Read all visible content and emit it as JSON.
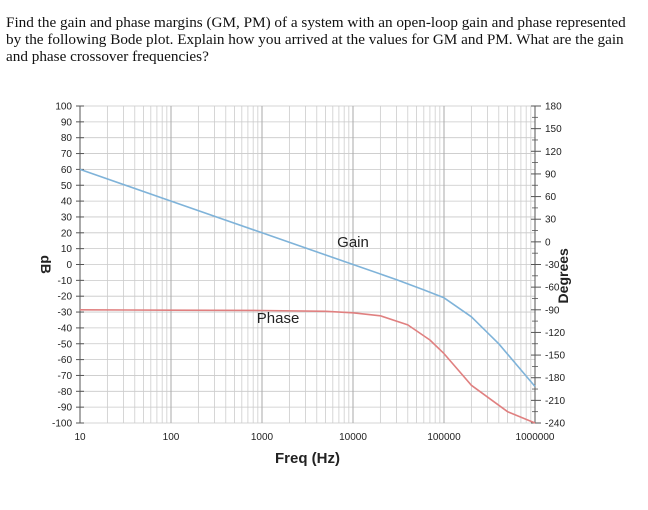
{
  "question": "Find the gain and phase margins (GM, PM) of a system with an open-loop gain and phase represented by the following Bode plot.  Explain how you arrived at the values for GM and PM.  What are the gain and phase crossover frequencies?",
  "chart_data": {
    "type": "line",
    "xlabel": "Freq (Hz)",
    "ylabel_left": "dB",
    "ylabel_right": "Degrees",
    "x_scale": "log",
    "xlim": [
      10,
      1000000
    ],
    "ylim_left": [
      -100,
      100
    ],
    "ylim_right": [
      -240,
      180
    ],
    "grid": true,
    "x_ticks": [
      "10",
      "100",
      "1000",
      "10000",
      "100000",
      "1000000"
    ],
    "left_ticks": [
      "100",
      "90",
      "80",
      "70",
      "60",
      "50",
      "40",
      "30",
      "20",
      "10",
      "0",
      "-10",
      "-20",
      "-30",
      "-40",
      "-50",
      "-60",
      "-70",
      "-80",
      "-90",
      "-100"
    ],
    "right_ticks": [
      "180",
      "150",
      "120",
      "90",
      "60",
      "30",
      "0",
      "-30",
      "-60",
      "-90",
      "-120",
      "-150",
      "-180",
      "-210",
      "-240"
    ],
    "annotations": [
      {
        "text": "Gain",
        "x": 10000,
        "y": 11
      },
      {
        "text": "Phase",
        "x": 1500,
        "y": -37
      }
    ],
    "series": [
      {
        "label": "Gain",
        "axis": "left",
        "color": "#7fb3d9",
        "x": [
          10,
          100,
          1000,
          10000,
          30000,
          60000,
          100000,
          200000,
          400000,
          1000000
        ],
        "y": [
          60,
          40,
          20,
          0,
          -9.5,
          -16,
          -21,
          -33,
          -50,
          -77
        ]
      },
      {
        "label": "Phase",
        "axis": "right",
        "color": "#e08080",
        "x": [
          10,
          100,
          1000,
          5000,
          10000,
          20000,
          40000,
          70000,
          100000,
          200000,
          500000,
          1000000
        ],
        "y": [
          -90,
          -90.5,
          -91,
          -92,
          -94,
          -98,
          -110,
          -130,
          -148,
          -190,
          -225,
          -240
        ]
      }
    ]
  }
}
